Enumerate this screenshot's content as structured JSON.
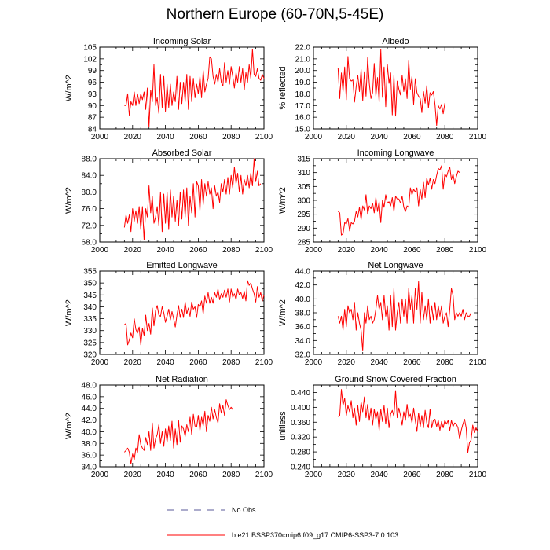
{
  "figure_title": "Northern Europe (60-70N,5-45E)",
  "legend": {
    "obs_label": "No Obs",
    "obs_color": "#5a5a9a",
    "model_label": "b.e21.BSSP370cmip6.f09_g17.CMIP6-SSP3-7.0.103",
    "model_color": "#ff0000"
  },
  "chart_data": [
    {
      "id": "incoming-solar",
      "type": "line",
      "title": "Incoming Solar",
      "xlabel": "",
      "ylabel": "W/m^2",
      "xlim": [
        2000,
        2100
      ],
      "xticks": [
        2000,
        2020,
        2040,
        2060,
        2080,
        2100
      ],
      "ylim": [
        84,
        105
      ],
      "yticks": [
        "84",
        "87",
        "90",
        "93",
        "96",
        "99",
        "102",
        "105"
      ],
      "series": [
        {
          "name": "b.e21.BSSP370cmip6.f09_g17.CMIP6-SSP3-7.0.103",
          "x_start": 2015,
          "values": [
            90,
            90,
            93,
            87.5,
            91,
            90,
            93.5,
            90,
            93,
            90.5,
            93,
            91.5,
            93.5,
            89,
            94.5,
            84.5,
            94,
            91,
            100.5,
            90,
            92,
            88,
            98,
            89.5,
            97.5,
            88.5,
            95.5,
            89.5,
            95.5,
            90,
            93.5,
            91,
            97.5,
            89,
            96,
            90.5,
            96,
            91,
            98,
            89,
            97.5,
            91,
            97,
            92,
            95.5,
            93,
            97.5,
            92,
            99,
            93.5,
            95.5,
            97,
            102.5,
            102,
            97.5,
            95.5,
            98,
            96,
            99.5,
            96,
            95,
            101,
            96,
            99,
            95.5,
            100,
            97.5,
            94.5,
            98.5,
            96,
            100,
            96,
            99.5,
            94,
            98.5,
            96,
            100.5,
            97,
            104.5,
            98,
            97.5,
            99.5,
            97,
            96.5,
            98,
            97
          ]
        }
      ]
    },
    {
      "id": "albedo",
      "type": "line",
      "title": "Albedo",
      "xlabel": "",
      "ylabel": "% reflected",
      "xlim": [
        2000,
        2100
      ],
      "xticks": [
        2000,
        2020,
        2040,
        2060,
        2080,
        2100
      ],
      "ylim": [
        15,
        22
      ],
      "yticks": [
        "15.0",
        "16.0",
        "17.0",
        "18.0",
        "19.0",
        "20.0",
        "21.0",
        "22.0"
      ],
      "series": [
        {
          "name": "b.e21.BSSP370cmip6.f09_g17.CMIP6-SSP3-7.0.103",
          "x_start": 2015,
          "values": [
            20.2,
            17.6,
            19.8,
            18.2,
            20.3,
            17.5,
            21.2,
            19.3,
            19.1,
            19.2,
            17.3,
            18.6,
            19.6,
            18.2,
            20.1,
            17.4,
            19.9,
            17.8,
            21.1,
            18.9,
            17.6,
            18.1,
            20.6,
            17.8,
            19.4,
            17.3,
            21.8,
            17.7,
            20.3,
            16.9,
            20.5,
            18.9,
            19.8,
            16.2,
            19.6,
            16.1,
            19.1,
            18.4,
            17.9,
            19.6,
            18.2,
            19.3,
            17.6,
            20.9,
            18.4,
            19.5,
            17.1,
            19.3,
            18.1,
            17.8,
            17.6,
            16.4,
            18.2,
            17.2,
            18.7,
            16.8,
            18.1,
            17.9,
            18.2,
            17.1,
            15.3,
            17.0,
            16.7,
            17.1,
            16.3,
            17.2
          ]
        }
      ]
    },
    {
      "id": "absorbed-solar",
      "type": "line",
      "title": "Absorbed Solar",
      "xlabel": "",
      "ylabel": "W/m^2",
      "xlim": [
        2000,
        2100
      ],
      "xticks": [
        2000,
        2020,
        2040,
        2060,
        2080,
        2100
      ],
      "ylim": [
        68,
        88
      ],
      "yticks": [
        "68.0",
        "72.0",
        "76.0",
        "80.0",
        "84.0",
        "88.0"
      ],
      "series": [
        {
          "name": "b.e21.BSSP370cmip6.f09_g17.CMIP6-SSP3-7.0.103",
          "x_start": 2015,
          "values": [
            71.5,
            74.5,
            72.5,
            74.5,
            70.5,
            76,
            73,
            75.5,
            72.5,
            76.5,
            71,
            76.5,
            68.5,
            76,
            74,
            81.5,
            75,
            79,
            72.5,
            74,
            76.5,
            72,
            80,
            70.5,
            79.5,
            72.5,
            80,
            71,
            80.5,
            74,
            79,
            73,
            78,
            72,
            80,
            73.5,
            80.5,
            74,
            81,
            72,
            79,
            75,
            82,
            74,
            82.5,
            81.5,
            75.5,
            83,
            77,
            82,
            79,
            82.5,
            79.5,
            81,
            76,
            81.5,
            79,
            80,
            77.5,
            82,
            80,
            83,
            79.5,
            83.5,
            79.5,
            84,
            81,
            86,
            82,
            84.5,
            80,
            84,
            79.5,
            83,
            81.5,
            84,
            81,
            84.5,
            81.5,
            88,
            82.5,
            85,
            81.5,
            82
          ]
        }
      ]
    },
    {
      "id": "incoming-longwave",
      "type": "line",
      "title": "Incoming Longwave",
      "xlabel": "",
      "ylabel": "W/m^2",
      "xlim": [
        2000,
        2100
      ],
      "xticks": [
        2000,
        2020,
        2040,
        2060,
        2080,
        2100
      ],
      "ylim": [
        285,
        315
      ],
      "yticks": [
        "285",
        "290",
        "295",
        "300",
        "305",
        "310",
        "315"
      ],
      "series": [
        {
          "name": "b.e21.BSSP370cmip6.f09_g17.CMIP6-SSP3-7.0.103",
          "x_start": 2015,
          "values": [
            296,
            295.5,
            287.5,
            288,
            292,
            291.5,
            293.5,
            289,
            292,
            291.5,
            292.5,
            296,
            294,
            297.5,
            293,
            298,
            296.5,
            302,
            295,
            298,
            297,
            299,
            295.5,
            301,
            296,
            299.5,
            292,
            300,
            297.5,
            302,
            299,
            299.5,
            298,
            301,
            296,
            301.5,
            300.5,
            300.5,
            299,
            301.5,
            297.5,
            296,
            298,
            297.5,
            304.5,
            302,
            304,
            303,
            304.5,
            298,
            304,
            300.5,
            306.5,
            301,
            308,
            305.5,
            308,
            304,
            307.5,
            306,
            309,
            311.5,
            311,
            312.5,
            304,
            309.5,
            308.5,
            310.5,
            312,
            307.5,
            309.5,
            306,
            308.5,
            310.5,
            310
          ]
        }
      ]
    },
    {
      "id": "emitted-longwave",
      "type": "line",
      "title": "Emitted Longwave",
      "xlabel": "",
      "ylabel": "W/m^2",
      "xlim": [
        2000,
        2100
      ],
      "xticks": [
        2000,
        2020,
        2040,
        2060,
        2080,
        2100
      ],
      "ylim": [
        320,
        355
      ],
      "yticks": [
        "320",
        "325",
        "330",
        "335",
        "340",
        "345",
        "350",
        "355"
      ],
      "series": [
        {
          "name": "b.e21.BSSP370cmip6.f09_g17.CMIP6-SSP3-7.0.103",
          "x_start": 2015,
          "values": [
            332.5,
            333,
            324,
            326,
            329,
            327,
            335,
            330.5,
            329,
            331.5,
            324,
            331,
            328,
            336.5,
            330,
            333,
            328.5,
            339.5,
            332,
            338.5,
            340.5,
            336.5,
            336,
            340,
            337.5,
            333.5,
            336,
            339,
            334.5,
            338,
            335,
            331.5,
            336.5,
            340.5,
            335.5,
            339,
            335.5,
            342,
            337,
            339.5,
            336,
            342,
            339,
            340,
            335.5,
            341,
            340,
            342.5,
            337,
            344.5,
            341.5,
            346,
            341.5,
            344,
            341.5,
            346,
            344,
            347.5,
            343,
            345.5,
            344,
            347,
            344,
            347.5,
            342,
            347.5,
            344,
            345.5,
            343,
            347.5,
            345,
            346,
            343.5,
            346.5,
            342.5,
            351,
            349,
            350,
            347.5,
            345.5,
            342,
            348.5,
            344,
            346,
            342.5,
            345
          ]
        }
      ]
    },
    {
      "id": "net-longwave",
      "type": "line",
      "title": "Net Longwave",
      "xlabel": "",
      "ylabel": "W/m^2",
      "xlim": [
        2000,
        2100
      ],
      "xticks": [
        2000,
        2020,
        2040,
        2060,
        2080,
        2100
      ],
      "ylim": [
        32,
        44
      ],
      "yticks": [
        "32.0",
        "34.0",
        "36.0",
        "38.0",
        "40.0",
        "42.0",
        "44.0"
      ],
      "series": [
        {
          "name": "b.e21.BSSP370cmip6.f09_g17.CMIP6-SSP3-7.0.103",
          "x_start": 2015,
          "values": [
            37.5,
            36.5,
            37.5,
            35.5,
            38.5,
            36,
            39,
            38,
            38.5,
            37,
            39.5,
            35.5,
            38,
            36.5,
            35.5,
            32.5,
            38,
            36.5,
            39,
            37,
            37.5,
            36.5,
            37,
            38.5,
            40.5,
            38.5,
            39.5,
            37,
            40.5,
            37.5,
            39,
            35.5,
            40.5,
            36,
            41.5,
            35.5,
            38,
            39.5,
            36.5,
            40,
            37.5,
            40,
            36.5,
            41.5,
            38.5,
            40.5,
            36.5,
            41.5,
            38.5,
            42.5,
            36.5,
            41,
            37,
            39,
            37,
            40,
            36.5,
            39,
            37,
            39.5,
            37,
            39,
            37.5,
            39,
            36.5,
            37.5,
            38,
            36,
            38.5,
            41.5,
            40.5,
            37,
            38,
            37.5,
            38,
            37.5,
            38.5,
            37,
            38,
            37.5,
            37.5,
            38
          ]
        }
      ]
    },
    {
      "id": "net-radiation",
      "type": "line",
      "title": "Net Radiation",
      "xlabel": "",
      "ylabel": "W/m^2",
      "xlim": [
        2000,
        2100
      ],
      "xticks": [
        2000,
        2020,
        2040,
        2060,
        2080,
        2100
      ],
      "ylim": [
        34,
        48
      ],
      "yticks": [
        "34.0",
        "36.0",
        "38.0",
        "40.0",
        "42.0",
        "44.0",
        "46.0",
        "48.0"
      ],
      "series": [
        {
          "name": "b.e21.BSSP370cmip6.f09_g17.CMIP6-SSP3-7.0.103",
          "x_start": 2015,
          "values": [
            36.5,
            36.8,
            37.2,
            36.5,
            34.5,
            36.2,
            35.2,
            37.2,
            36.5,
            39.5,
            37.8,
            37.2,
            36.8,
            39,
            37.8,
            40,
            36.8,
            41.5,
            37.2,
            38.8,
            39.5,
            41.2,
            38,
            40,
            37.5,
            40.5,
            38.2,
            41,
            38.5,
            41.8,
            37.2,
            40.5,
            37.8,
            42,
            38.2,
            41,
            40.5,
            39.2,
            41.2,
            40,
            42.5,
            39.5,
            43,
            41,
            40.8,
            42.8,
            40.2,
            42.5,
            41,
            43.5,
            40,
            42.8,
            41.8,
            44.2,
            42.2,
            43.8,
            42.5,
            41.5,
            44.8,
            43.2,
            44.5,
            42.8,
            45.5,
            44.5,
            43.8,
            44.2,
            43.8
          ]
        }
      ]
    },
    {
      "id": "ground-snow",
      "type": "line",
      "title": "Ground Snow Covered Fraction",
      "xlabel": "",
      "ylabel": "unitless",
      "xlim": [
        2000,
        2100
      ],
      "xticks": [
        2000,
        2020,
        2040,
        2060,
        2080,
        2100
      ],
      "ylim": [
        0.24,
        0.46
      ],
      "yticks": [
        "0.240",
        "0.280",
        "0.320",
        "0.360",
        "0.400",
        "0.440"
      ],
      "series": [
        {
          "name": "b.e21.BSSP370cmip6.f09_g17.CMIP6-SSP3-7.0.103",
          "x_start": 2015,
          "values": [
            0.375,
            0.378,
            0.448,
            0.405,
            0.425,
            0.378,
            0.405,
            0.388,
            0.418,
            0.372,
            0.398,
            0.352,
            0.405,
            0.362,
            0.415,
            0.388,
            0.428,
            0.372,
            0.408,
            0.365,
            0.398,
            0.352,
            0.395,
            0.368,
            0.388,
            0.338,
            0.395,
            0.362,
            0.405,
            0.355,
            0.398,
            0.345,
            0.382,
            0.392,
            0.375,
            0.445,
            0.372,
            0.398,
            0.378,
            0.352,
            0.388,
            0.365,
            0.408,
            0.372,
            0.382,
            0.358,
            0.398,
            0.365,
            0.335,
            0.385,
            0.348,
            0.378,
            0.345,
            0.392,
            0.358,
            0.345,
            0.395,
            0.345,
            0.365,
            0.368,
            0.348,
            0.365,
            0.338,
            0.362,
            0.345,
            0.365,
            0.355,
            0.365,
            0.338,
            0.365,
            0.348,
            0.358,
            0.355,
            0.345,
            0.315,
            0.338,
            0.355,
            0.368,
            0.345,
            0.278,
            0.305,
            0.312,
            0.352,
            0.332,
            0.345,
            0.335
          ]
        }
      ]
    }
  ]
}
